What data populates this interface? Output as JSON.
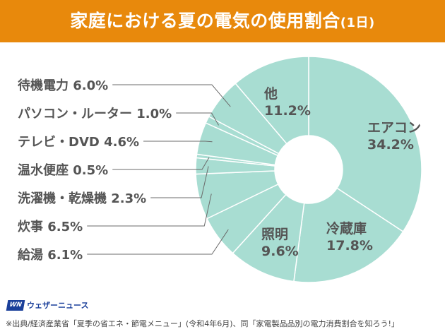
{
  "header": {
    "title": "家庭における夏の電気の使用割合",
    "title_suffix": "(1日)",
    "color": "#e8890c"
  },
  "chart_data": {
    "type": "pie",
    "variant": "donut",
    "title": "家庭における夏の電気の使用割合(1日)",
    "unit": "%",
    "start": "top",
    "direction": "clockwise",
    "slice_color": "#a8ddd2",
    "separator_color": "#ffffff",
    "slices": [
      {
        "label": "エアコン",
        "value": 34.2,
        "value_text": "34.2%",
        "label_position": "inside"
      },
      {
        "label": "冷蔵庫",
        "value": 17.8,
        "value_text": "17.8%",
        "label_position": "inside"
      },
      {
        "label": "照明",
        "value": 9.6,
        "value_text": "9.6%",
        "label_position": "inside"
      },
      {
        "label": "給湯",
        "value": 6.1,
        "value_text": "6.1%",
        "label_position": "left"
      },
      {
        "label": "炊事",
        "value": 6.5,
        "value_text": "6.5%",
        "label_position": "left"
      },
      {
        "label": "洗濯機・乾燥機",
        "value": 2.3,
        "value_text": "2.3%",
        "label_position": "left"
      },
      {
        "label": "温水便座",
        "value": 0.5,
        "value_text": "0.5%",
        "label_position": "left"
      },
      {
        "label": "テレビ・DVD",
        "value": 4.6,
        "value_text": "4.6%",
        "label_position": "left"
      },
      {
        "label": "パソコン・ルーター",
        "value": 1.0,
        "value_text": "1.0%",
        "label_position": "left"
      },
      {
        "label": "待機電力",
        "value": 6.0,
        "value_text": "6.0%",
        "label_position": "left"
      },
      {
        "label": "他",
        "value": 11.2,
        "value_text": "11.2%",
        "label_position": "inside"
      }
    ]
  },
  "footer": {
    "logo_mark": "WN",
    "logo_text": "ウェザーニュース",
    "source": "※出典/経済産業省「夏季の省エネ・節電メニュー」(令和4年6月)、同「家電製品品別の電力消費割合を知ろう!」"
  }
}
